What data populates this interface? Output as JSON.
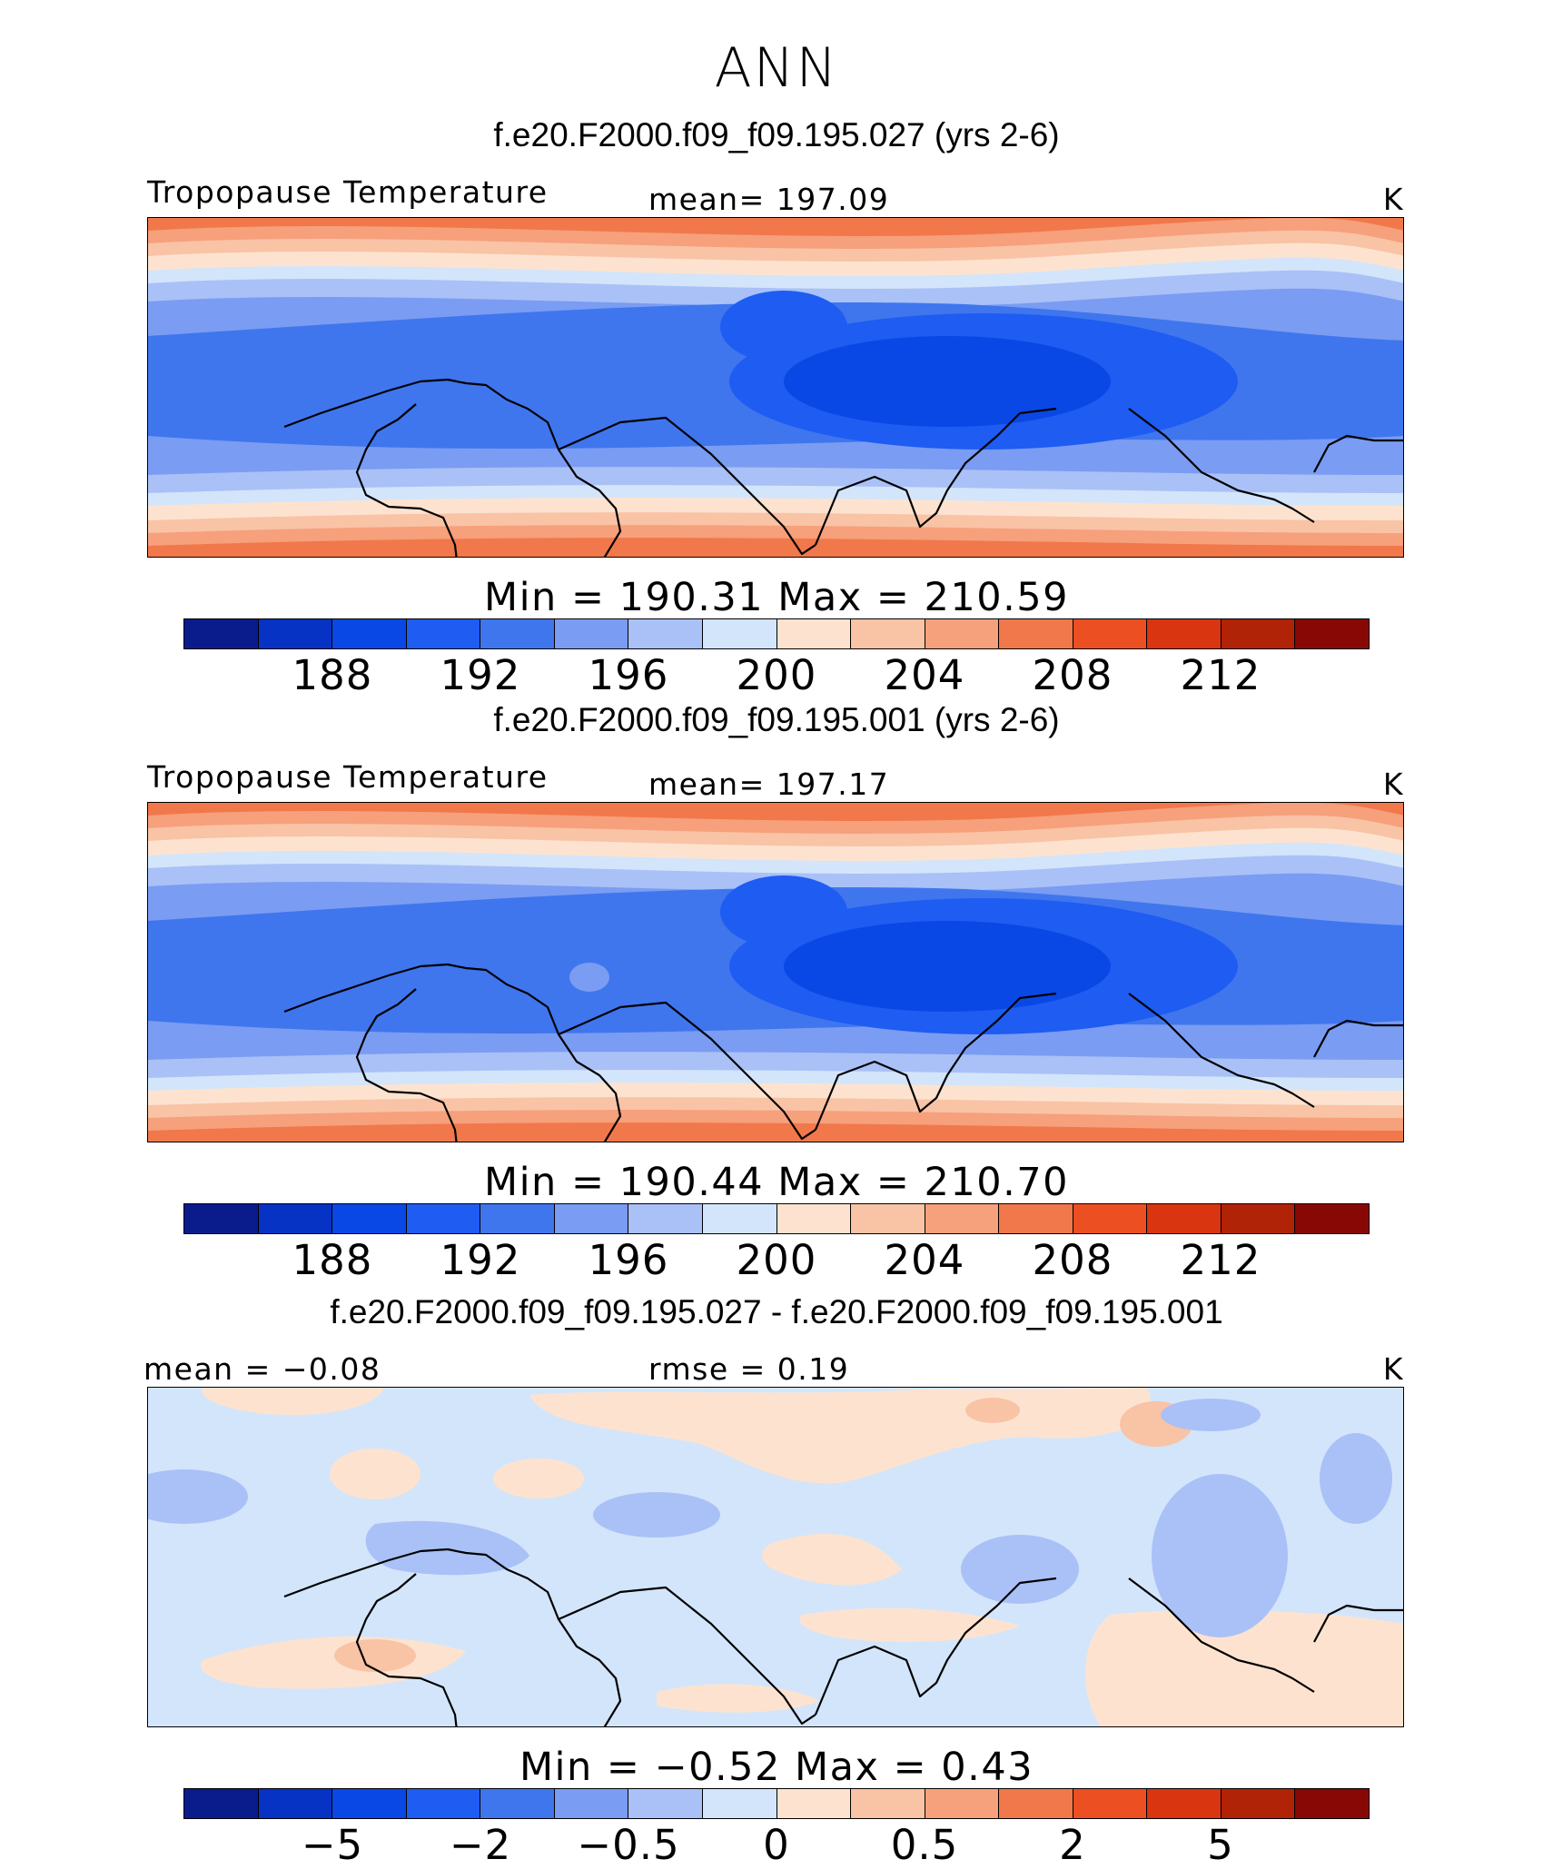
{
  "page_title": "ANN",
  "panels": [
    {
      "case_title": "f.e20.F2000.f09_f09.195.027 (yrs 2-6)",
      "left_label": "Tropopause Temperature",
      "center_label": "mean= 197.09",
      "unit": "K",
      "minmax": "Min = 190.31 Max = 210.59",
      "colorbar_ticks": [
        "188",
        "192",
        "196",
        "200",
        "204",
        "208",
        "212"
      ]
    },
    {
      "case_title": "f.e20.F2000.f09_f09.195.001 (yrs 2-6)",
      "left_label": "Tropopause Temperature",
      "center_label": "mean= 197.17",
      "unit": "K",
      "minmax": "Min = 190.44 Max = 210.70",
      "colorbar_ticks": [
        "188",
        "192",
        "196",
        "200",
        "204",
        "208",
        "212"
      ]
    },
    {
      "case_title": "f.e20.F2000.f09_f09.195.027 - f.e20.F2000.f09_f09.195.001",
      "left_label": "mean =  −0.08",
      "center_label": "rmse =   0.19",
      "unit": "K",
      "minmax": "Min =  −0.52 Max =   0.43",
      "colorbar_ticks": [
        "−5",
        "−2",
        "−0.5",
        "0",
        "0.5",
        "2",
        "5"
      ]
    }
  ],
  "colors": {
    "colorbar": [
      "#0a1c8c",
      "#0633c4",
      "#0a48e6",
      "#1e5cf2",
      "#3f76ee",
      "#7a9cf2",
      "#a9c1f7",
      "#d3e5fb",
      "#fde3cf",
      "#f9c3a6",
      "#f6a07c",
      "#f1784b",
      "#ec4f22",
      "#d83510",
      "#b12306",
      "#880806"
    ]
  }
}
